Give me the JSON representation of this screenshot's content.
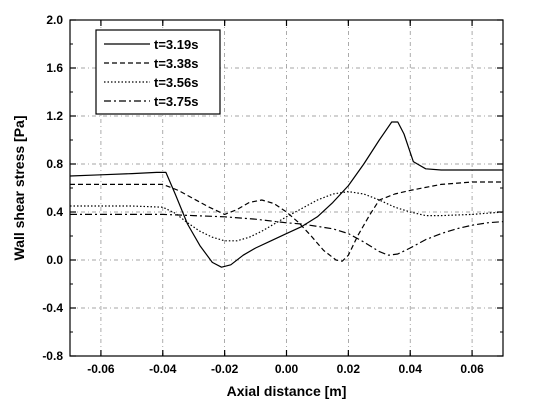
{
  "chart_data": {
    "type": "line",
    "title": "",
    "xlabel": "Axial distance [m]",
    "ylabel": "Wall shear stress [Pa]",
    "xlim": [
      -0.07,
      0.07
    ],
    "ylim": [
      -0.8,
      2.0
    ],
    "x_ticks": [
      -0.06,
      -0.04,
      -0.02,
      0.0,
      0.02,
      0.04,
      0.06
    ],
    "x_tick_labels": [
      "-0.06",
      "-0.04",
      "-0.02",
      "0.00",
      "0.02",
      "0.04",
      "0.06"
    ],
    "y_ticks": [
      -0.8,
      -0.4,
      0.0,
      0.4,
      0.8,
      1.2,
      1.6,
      2.0
    ],
    "y_tick_labels": [
      "-0.8",
      "-0.4",
      "0.0",
      "0.4",
      "0.8",
      "1.2",
      "1.6",
      "2.0"
    ],
    "grid": true,
    "legend_position": "top-left",
    "series": [
      {
        "name": "t=3.19s",
        "style": "solid",
        "points": [
          [
            -0.07,
            0.7
          ],
          [
            -0.06,
            0.71
          ],
          [
            -0.05,
            0.72
          ],
          [
            -0.042,
            0.73
          ],
          [
            -0.039,
            0.73
          ],
          [
            -0.036,
            0.55
          ],
          [
            -0.032,
            0.3
          ],
          [
            -0.028,
            0.12
          ],
          [
            -0.024,
            -0.02
          ],
          [
            -0.021,
            -0.06
          ],
          [
            -0.018,
            -0.04
          ],
          [
            -0.014,
            0.04
          ],
          [
            -0.01,
            0.1
          ],
          [
            -0.005,
            0.16
          ],
          [
            0.0,
            0.22
          ],
          [
            0.005,
            0.28
          ],
          [
            0.01,
            0.36
          ],
          [
            0.015,
            0.48
          ],
          [
            0.02,
            0.62
          ],
          [
            0.025,
            0.8
          ],
          [
            0.03,
            1.0
          ],
          [
            0.034,
            1.15
          ],
          [
            0.036,
            1.15
          ],
          [
            0.038,
            1.05
          ],
          [
            0.041,
            0.82
          ],
          [
            0.045,
            0.76
          ],
          [
            0.05,
            0.75
          ],
          [
            0.06,
            0.75
          ],
          [
            0.07,
            0.75
          ]
        ]
      },
      {
        "name": "t=3.38s",
        "style": "dashed",
        "points": [
          [
            -0.07,
            0.63
          ],
          [
            -0.06,
            0.63
          ],
          [
            -0.05,
            0.63
          ],
          [
            -0.04,
            0.63
          ],
          [
            -0.035,
            0.58
          ],
          [
            -0.03,
            0.51
          ],
          [
            -0.025,
            0.44
          ],
          [
            -0.02,
            0.38
          ],
          [
            -0.016,
            0.42
          ],
          [
            -0.012,
            0.48
          ],
          [
            -0.008,
            0.5
          ],
          [
            -0.004,
            0.47
          ],
          [
            0.0,
            0.4
          ],
          [
            0.004,
            0.31
          ],
          [
            0.008,
            0.2
          ],
          [
            0.012,
            0.08
          ],
          [
            0.016,
            0.0
          ],
          [
            0.018,
            -0.01
          ],
          [
            0.02,
            0.04
          ],
          [
            0.023,
            0.2
          ],
          [
            0.027,
            0.38
          ],
          [
            0.03,
            0.5
          ],
          [
            0.035,
            0.55
          ],
          [
            0.04,
            0.58
          ],
          [
            0.05,
            0.63
          ],
          [
            0.06,
            0.65
          ],
          [
            0.07,
            0.65
          ]
        ]
      },
      {
        "name": "t=3.56s",
        "style": "dotted",
        "points": [
          [
            -0.07,
            0.45
          ],
          [
            -0.06,
            0.45
          ],
          [
            -0.05,
            0.45
          ],
          [
            -0.04,
            0.44
          ],
          [
            -0.036,
            0.39
          ],
          [
            -0.032,
            0.31
          ],
          [
            -0.028,
            0.24
          ],
          [
            -0.024,
            0.19
          ],
          [
            -0.02,
            0.16
          ],
          [
            -0.016,
            0.16
          ],
          [
            -0.012,
            0.19
          ],
          [
            -0.008,
            0.24
          ],
          [
            -0.004,
            0.3
          ],
          [
            0.0,
            0.36
          ],
          [
            0.005,
            0.43
          ],
          [
            0.01,
            0.5
          ],
          [
            0.015,
            0.55
          ],
          [
            0.02,
            0.57
          ],
          [
            0.025,
            0.55
          ],
          [
            0.03,
            0.5
          ],
          [
            0.035,
            0.44
          ],
          [
            0.04,
            0.4
          ],
          [
            0.045,
            0.37
          ],
          [
            0.05,
            0.37
          ],
          [
            0.06,
            0.38
          ],
          [
            0.07,
            0.4
          ]
        ]
      },
      {
        "name": "t=3.75s",
        "style": "dashdot",
        "points": [
          [
            -0.07,
            0.38
          ],
          [
            -0.06,
            0.38
          ],
          [
            -0.05,
            0.38
          ],
          [
            -0.04,
            0.38
          ],
          [
            -0.03,
            0.37
          ],
          [
            -0.02,
            0.36
          ],
          [
            -0.01,
            0.34
          ],
          [
            0.0,
            0.31
          ],
          [
            0.005,
            0.3
          ],
          [
            0.01,
            0.28
          ],
          [
            0.015,
            0.26
          ],
          [
            0.02,
            0.22
          ],
          [
            0.025,
            0.15
          ],
          [
            0.03,
            0.07
          ],
          [
            0.033,
            0.04
          ],
          [
            0.036,
            0.05
          ],
          [
            0.04,
            0.1
          ],
          [
            0.045,
            0.17
          ],
          [
            0.05,
            0.22
          ],
          [
            0.055,
            0.26
          ],
          [
            0.06,
            0.29
          ],
          [
            0.065,
            0.31
          ],
          [
            0.07,
            0.32
          ]
        ]
      }
    ]
  }
}
